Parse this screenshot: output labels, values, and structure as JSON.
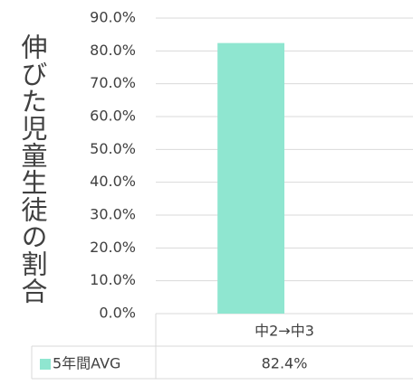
{
  "chart_data": {
    "type": "bar",
    "y_label": "伸びた児童生徒の割合",
    "categories": [
      "中2→中3"
    ],
    "series": [
      {
        "name": "5年間AVG",
        "color": "#8fe6d0",
        "values": [
          82.4
        ],
        "value_labels": [
          "82.4%"
        ]
      }
    ],
    "ylim": [
      0,
      90
    ],
    "yticks": [
      {
        "value": 0,
        "label": "0.0%"
      },
      {
        "value": 10,
        "label": "10.0%"
      },
      {
        "value": 20,
        "label": "20.0%"
      },
      {
        "value": 30,
        "label": "30.0%"
      },
      {
        "value": 40,
        "label": "40.0%"
      },
      {
        "value": 50,
        "label": "50.0%"
      },
      {
        "value": 60,
        "label": "60.0%"
      },
      {
        "value": 70,
        "label": "70.0%"
      },
      {
        "value": 80,
        "label": "80.0%"
      },
      {
        "value": 90,
        "label": "90.0%"
      }
    ],
    "grid": true,
    "data_table": true
  }
}
